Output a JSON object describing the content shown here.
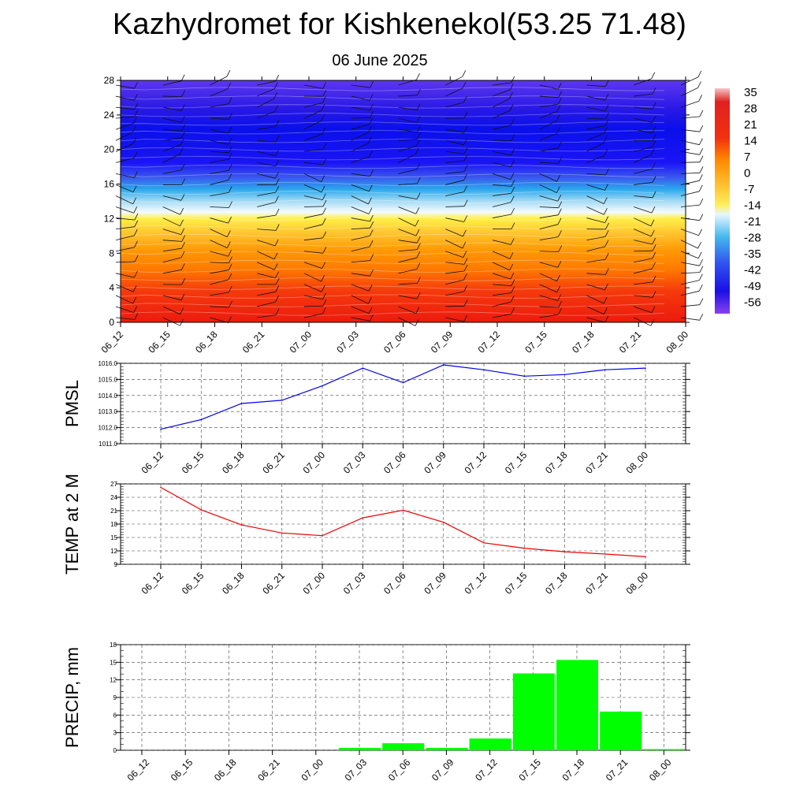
{
  "title": "Kazhydromet for Kishkenekol(53.25 71.48)",
  "subtitle": "06 June 2025",
  "time_labels": [
    "06_12",
    "06_15",
    "06_18",
    "06_21",
    "07_00",
    "07_03",
    "07_06",
    "07_09",
    "07_12",
    "07_15",
    "07_18",
    "07_21",
    "08_00"
  ],
  "chart_data": [
    {
      "type": "heatmap",
      "description_role": "temperature cross-section with wind barbs",
      "x": [
        "06_12",
        "06_15",
        "06_18",
        "06_21",
        "07_00",
        "07_03",
        "07_06",
        "07_09",
        "07_12",
        "07_15",
        "07_18",
        "07_21",
        "08_00"
      ],
      "y_ticks": [
        0,
        4,
        8,
        12,
        16,
        20,
        24,
        28
      ],
      "ylim": [
        0,
        28
      ],
      "colorbar_labels": [
        "35",
        "28",
        "21",
        "14",
        "7",
        "0",
        "-7",
        "-14",
        "-21",
        "-28",
        "-35",
        "-42",
        "-49",
        "-56"
      ],
      "colors": {
        "warm_low": "#ee1e10",
        "mid_orange": "#ff8a00",
        "yellow": "#ffe34a",
        "light_cyan": "#c8ecfa",
        "cyan": "#28a6ec",
        "blue": "#0a14f0",
        "deep_blue": "#1a0ad8",
        "violet_top": "#5a2ee8"
      }
    },
    {
      "type": "line",
      "ylabel": "PMSL",
      "x": [
        "06_12",
        "06_15",
        "06_18",
        "06_21",
        "07_00",
        "07_03",
        "07_06",
        "07_09",
        "07_12",
        "07_15",
        "07_18",
        "07_21",
        "08_00"
      ],
      "y": [
        1011.9,
        1012.5,
        1013.5,
        1013.7,
        1014.6,
        1015.7,
        1014.8,
        1015.9,
        1015.6,
        1015.2,
        1015.3,
        1015.6,
        1015.7
      ],
      "ylim": [
        1011.0,
        1016.0
      ],
      "yticks": [
        "1011.0",
        "1012.0",
        "1013.0",
        "1014.0",
        "1015.0",
        "1016.0"
      ],
      "color": "#0000ee",
      "grid": true
    },
    {
      "type": "line",
      "ylabel": "TEMP at 2 M",
      "x": [
        "06_12",
        "06_15",
        "06_18",
        "06_21",
        "07_00",
        "07_03",
        "07_06",
        "07_09",
        "07_12",
        "07_15",
        "07_18",
        "07_21",
        "08_00"
      ],
      "y": [
        26.2,
        21.2,
        17.8,
        16.0,
        15.4,
        19.4,
        21.1,
        18.4,
        13.8,
        12.6,
        11.8,
        11.3,
        10.7
      ],
      "ylim": [
        9,
        27
      ],
      "yticks": [
        "9",
        "12",
        "15",
        "18",
        "21",
        "24",
        "27"
      ],
      "color": "#ee0000",
      "grid": true
    },
    {
      "type": "bar",
      "ylabel": "PRECIP, mm",
      "categories": [
        "06_12",
        "06_15",
        "06_18",
        "06_21",
        "07_00",
        "07_03",
        "07_06",
        "07_09",
        "07_12",
        "07_15",
        "07_18",
        "07_21",
        "08_00"
      ],
      "values": [
        0,
        0,
        0,
        0,
        0,
        0.4,
        1.2,
        0.4,
        2.0,
        13.1,
        15.4,
        6.6,
        0.2
      ],
      "ylim": [
        0,
        18
      ],
      "yticks": [
        "0",
        "3",
        "6",
        "9",
        "12",
        "15",
        "18"
      ],
      "color": "#00ff00",
      "grid": true
    }
  ]
}
